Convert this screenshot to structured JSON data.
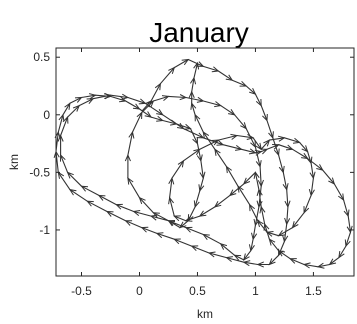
{
  "chart_data": {
    "type": "line",
    "title": "January",
    "xlabel": "km",
    "ylabel": "km",
    "xlim": [
      -0.72,
      1.85
    ],
    "ylim": [
      -1.4,
      0.58
    ],
    "xticks": [
      -0.5,
      0,
      0.5,
      1,
      1.5
    ],
    "xtick_labels": [
      "-0.5",
      "0",
      "0.5",
      "1",
      "1.5"
    ],
    "yticks": [
      0.5,
      0,
      -0.5,
      -1
    ],
    "ytick_labels": [
      "0.5",
      "0",
      "-0.5",
      "-1"
    ],
    "grid": false,
    "line_color": "#333333",
    "marker": "arrow",
    "series": [
      {
        "x": [
          0.02,
          0.1,
          0.18,
          0.3,
          0.42,
          0.55,
          0.68,
          0.8,
          0.92,
          1.0,
          1.05,
          1.1,
          1.15,
          1.2,
          1.24,
          1.27,
          1.28,
          1.27,
          1.25,
          1.2,
          1.12,
          1.02,
          0.9,
          0.75,
          0.6,
          0.45,
          0.3,
          0.15,
          0.02,
          -0.12,
          -0.28,
          -0.45,
          -0.6,
          -0.7,
          -0.72,
          -0.7,
          -0.66,
          -0.6,
          -0.5,
          -0.38,
          -0.25,
          -0.12,
          0.0,
          0.1,
          0.2,
          0.32,
          0.44,
          0.5,
          0.53,
          0.55
        ],
        "y": [
          0.03,
          0.12,
          0.27,
          0.41,
          0.48,
          0.42,
          0.38,
          0.3,
          0.25,
          0.18,
          0.08,
          -0.05,
          -0.2,
          -0.35,
          -0.5,
          -0.65,
          -0.8,
          -0.95,
          -1.1,
          -1.22,
          -1.3,
          -1.3,
          -1.28,
          -1.24,
          -1.2,
          -1.14,
          -1.08,
          -1.03,
          -0.98,
          -0.92,
          -0.84,
          -0.75,
          -0.65,
          -0.5,
          -0.32,
          -0.15,
          0.0,
          0.1,
          0.15,
          0.17,
          0.16,
          0.12,
          0.05,
          -0.02,
          -0.05,
          -0.08,
          -0.12,
          -0.25,
          -0.4,
          -0.55
        ]
      },
      {
        "x": [
          0.55,
          0.52,
          0.48,
          0.42,
          0.35,
          0.25,
          0.12,
          0.0,
          -0.1,
          -0.1,
          -0.06,
          0.02,
          0.12,
          0.25,
          0.4,
          0.55,
          0.7,
          0.82,
          0.92,
          1.0,
          1.04,
          1.05,
          1.03,
          1.0,
          0.98,
          0.96,
          0.9,
          0.82,
          0.7,
          0.55,
          0.4,
          0.25,
          0.1,
          -0.05,
          -0.2,
          -0.35,
          -0.5,
          -0.62,
          -0.68,
          -0.68,
          -0.62,
          -0.52,
          -0.4,
          -0.25,
          -0.1,
          0.05
        ],
        "y": [
          -0.55,
          -0.66,
          -0.8,
          -0.92,
          -0.98,
          -0.92,
          -0.85,
          -0.72,
          -0.55,
          -0.35,
          -0.15,
          0.02,
          0.12,
          0.16,
          0.15,
          0.12,
          0.08,
          0.0,
          -0.12,
          -0.28,
          -0.45,
          -0.62,
          -0.8,
          -0.96,
          -1.08,
          -1.18,
          -1.26,
          -1.22,
          -1.12,
          -1.04,
          -0.98,
          -0.92,
          -0.88,
          -0.84,
          -0.78,
          -0.7,
          -0.62,
          -0.5,
          -0.35,
          -0.18,
          -0.02,
          0.08,
          0.14,
          0.17,
          0.15,
          0.1
        ]
      },
      {
        "x": [
          0.05,
          0.2,
          0.38,
          0.55,
          0.72,
          0.88,
          1.0,
          1.05,
          1.1,
          1.2,
          1.32,
          1.45,
          1.58,
          1.68,
          1.76,
          1.8,
          1.82,
          1.78,
          1.72,
          1.64,
          1.54,
          1.42,
          1.3,
          1.2,
          1.12,
          1.08,
          1.05,
          1.03,
          1.0,
          0.9,
          0.78,
          0.65,
          0.52,
          0.4,
          0.3,
          0.26,
          0.28,
          0.38,
          0.52,
          0.68,
          0.84,
          0.98,
          1.05
        ],
        "y": [
          0.1,
          0.0,
          -0.12,
          -0.2,
          -0.26,
          -0.3,
          -0.33,
          -0.32,
          -0.3,
          -0.26,
          -0.3,
          -0.38,
          -0.48,
          -0.6,
          -0.74,
          -0.88,
          -1.02,
          -1.14,
          -1.24,
          -1.3,
          -1.32,
          -1.3,
          -1.25,
          -1.18,
          -1.08,
          -0.95,
          -0.8,
          -0.65,
          -0.5,
          -0.6,
          -0.7,
          -0.8,
          -0.88,
          -0.92,
          -0.88,
          -0.72,
          -0.55,
          -0.4,
          -0.3,
          -0.22,
          -0.18,
          -0.2,
          -0.3
        ]
      },
      {
        "x": [
          1.05,
          1.12,
          1.25,
          1.38,
          1.45,
          1.48,
          1.5,
          1.48,
          1.42,
          1.32,
          1.2,
          1.1,
          1.02,
          0.95,
          0.85,
          0.75,
          0.65,
          0.55,
          0.48,
          0.45,
          0.45,
          0.47,
          0.5
        ],
        "y": [
          -0.3,
          -0.22,
          -0.2,
          -0.24,
          -0.32,
          -0.42,
          -0.55,
          -0.7,
          -0.85,
          -0.98,
          -1.05,
          -1.02,
          -0.92,
          -0.78,
          -0.62,
          -0.45,
          -0.3,
          -0.15,
          0.0,
          0.1,
          0.2,
          0.32,
          0.45
        ]
      }
    ]
  }
}
